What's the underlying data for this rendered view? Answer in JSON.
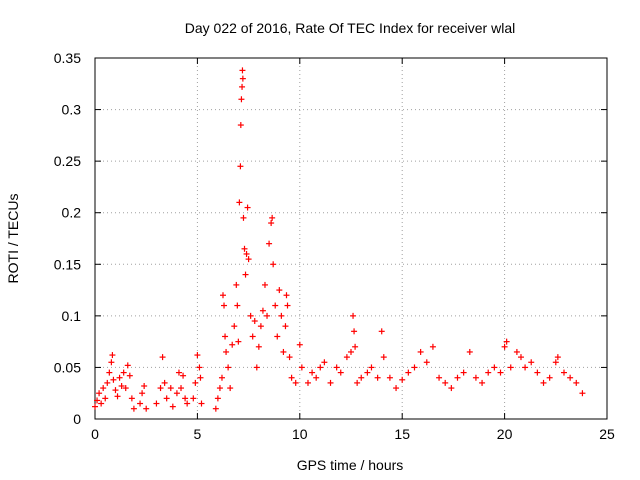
{
  "chart_data": {
    "type": "scatter",
    "title": "Day 022 of 2016, Rate Of TEC Index for receiver wlal",
    "xlabel": "GPS time / hours",
    "ylabel": "ROTI / TECUs",
    "xlim": [
      0,
      25
    ],
    "ylim": [
      0,
      0.35
    ],
    "xticks": [
      "0",
      "5",
      "10",
      "15",
      "20",
      "25"
    ],
    "yticks": [
      "0",
      "0.05",
      "0.1",
      "0.15",
      "0.2",
      "0.25",
      "0.3",
      "0.35"
    ],
    "grid": true,
    "marker": "plus",
    "color": "#ff0000",
    "series": [
      {
        "name": "ROTI",
        "points": [
          [
            0.0,
            0.012
          ],
          [
            0.1,
            0.018
          ],
          [
            0.2,
            0.025
          ],
          [
            0.3,
            0.015
          ],
          [
            0.4,
            0.03
          ],
          [
            0.5,
            0.02
          ],
          [
            0.6,
            0.035
          ],
          [
            0.7,
            0.045
          ],
          [
            0.8,
            0.055
          ],
          [
            0.85,
            0.062
          ],
          [
            0.9,
            0.038
          ],
          [
            1.0,
            0.028
          ],
          [
            1.1,
            0.022
          ],
          [
            1.2,
            0.04
          ],
          [
            1.3,
            0.032
          ],
          [
            1.4,
            0.045
          ],
          [
            1.5,
            0.03
          ],
          [
            1.6,
            0.052
          ],
          [
            1.7,
            0.042
          ],
          [
            1.8,
            0.02
          ],
          [
            1.9,
            0.01
          ],
          [
            2.2,
            0.015
          ],
          [
            2.3,
            0.025
          ],
          [
            2.4,
            0.032
          ],
          [
            2.5,
            0.01
          ],
          [
            3.0,
            0.015
          ],
          [
            3.2,
            0.03
          ],
          [
            3.3,
            0.06
          ],
          [
            3.4,
            0.035
          ],
          [
            3.5,
            0.02
          ],
          [
            3.7,
            0.03
          ],
          [
            3.8,
            0.012
          ],
          [
            4.0,
            0.025
          ],
          [
            4.1,
            0.045
          ],
          [
            4.2,
            0.03
          ],
          [
            4.3,
            0.042
          ],
          [
            4.4,
            0.02
          ],
          [
            4.5,
            0.015
          ],
          [
            4.8,
            0.02
          ],
          [
            4.9,
            0.035
          ],
          [
            5.0,
            0.062
          ],
          [
            5.1,
            0.05
          ],
          [
            5.15,
            0.04
          ],
          [
            5.2,
            0.015
          ],
          [
            5.9,
            0.01
          ],
          [
            6.0,
            0.02
          ],
          [
            6.1,
            0.03
          ],
          [
            6.2,
            0.04
          ],
          [
            6.25,
            0.12
          ],
          [
            6.3,
            0.11
          ],
          [
            6.35,
            0.08
          ],
          [
            6.4,
            0.065
          ],
          [
            6.5,
            0.05
          ],
          [
            6.6,
            0.03
          ],
          [
            6.7,
            0.072
          ],
          [
            6.8,
            0.09
          ],
          [
            6.9,
            0.13
          ],
          [
            6.95,
            0.11
          ],
          [
            7.0,
            0.075
          ],
          [
            7.05,
            0.21
          ],
          [
            7.1,
            0.245
          ],
          [
            7.12,
            0.285
          ],
          [
            7.15,
            0.31
          ],
          [
            7.18,
            0.322
          ],
          [
            7.2,
            0.338
          ],
          [
            7.22,
            0.33
          ],
          [
            7.25,
            0.195
          ],
          [
            7.3,
            0.165
          ],
          [
            7.35,
            0.14
          ],
          [
            7.4,
            0.16
          ],
          [
            7.45,
            0.205
          ],
          [
            7.5,
            0.155
          ],
          [
            7.6,
            0.1
          ],
          [
            7.7,
            0.08
          ],
          [
            7.8,
            0.095
          ],
          [
            7.9,
            0.05
          ],
          [
            8.0,
            0.07
          ],
          [
            8.1,
            0.09
          ],
          [
            8.2,
            0.105
          ],
          [
            8.3,
            0.13
          ],
          [
            8.4,
            0.1
          ],
          [
            8.5,
            0.17
          ],
          [
            8.6,
            0.19
          ],
          [
            8.65,
            0.195
          ],
          [
            8.7,
            0.15
          ],
          [
            8.8,
            0.11
          ],
          [
            8.9,
            0.08
          ],
          [
            9.0,
            0.125
          ],
          [
            9.1,
            0.1
          ],
          [
            9.2,
            0.065
          ],
          [
            9.3,
            0.09
          ],
          [
            9.35,
            0.12
          ],
          [
            9.4,
            0.11
          ],
          [
            9.5,
            0.06
          ],
          [
            9.6,
            0.04
          ],
          [
            9.8,
            0.035
          ],
          [
            10.0,
            0.072
          ],
          [
            10.1,
            0.05
          ],
          [
            10.4,
            0.035
          ],
          [
            10.6,
            0.045
          ],
          [
            10.8,
            0.04
          ],
          [
            11.0,
            0.05
          ],
          [
            11.2,
            0.055
          ],
          [
            11.5,
            0.035
          ],
          [
            11.8,
            0.05
          ],
          [
            12.0,
            0.045
          ],
          [
            12.3,
            0.06
          ],
          [
            12.5,
            0.065
          ],
          [
            12.6,
            0.1
          ],
          [
            12.65,
            0.085
          ],
          [
            12.7,
            0.07
          ],
          [
            12.8,
            0.035
          ],
          [
            13.0,
            0.04
          ],
          [
            13.3,
            0.045
          ],
          [
            13.5,
            0.05
          ],
          [
            13.8,
            0.04
          ],
          [
            14.0,
            0.085
          ],
          [
            14.1,
            0.06
          ],
          [
            14.4,
            0.04
          ],
          [
            14.7,
            0.03
          ],
          [
            15.0,
            0.038
          ],
          [
            15.3,
            0.045
          ],
          [
            15.6,
            0.05
          ],
          [
            15.9,
            0.065
          ],
          [
            16.2,
            0.055
          ],
          [
            16.5,
            0.07
          ],
          [
            16.8,
            0.04
          ],
          [
            17.1,
            0.035
          ],
          [
            17.4,
            0.03
          ],
          [
            17.7,
            0.04
          ],
          [
            18.0,
            0.045
          ],
          [
            18.3,
            0.065
          ],
          [
            18.6,
            0.04
          ],
          [
            18.9,
            0.035
          ],
          [
            19.2,
            0.045
          ],
          [
            19.5,
            0.05
          ],
          [
            19.8,
            0.045
          ],
          [
            20.0,
            0.07
          ],
          [
            20.1,
            0.075
          ],
          [
            20.3,
            0.05
          ],
          [
            20.6,
            0.065
          ],
          [
            20.8,
            0.06
          ],
          [
            21.0,
            0.05
          ],
          [
            21.3,
            0.055
          ],
          [
            21.6,
            0.045
          ],
          [
            21.9,
            0.035
          ],
          [
            22.2,
            0.04
          ],
          [
            22.5,
            0.055
          ],
          [
            22.6,
            0.06
          ],
          [
            22.9,
            0.045
          ],
          [
            23.2,
            0.04
          ],
          [
            23.5,
            0.035
          ],
          [
            23.8,
            0.025
          ]
        ]
      }
    ]
  }
}
